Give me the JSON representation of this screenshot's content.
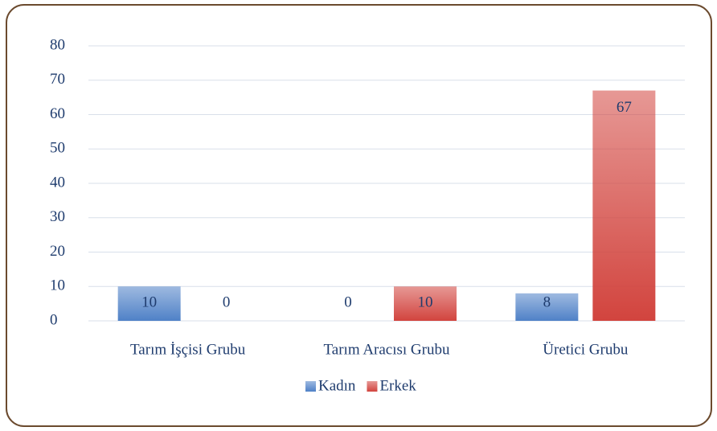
{
  "chart_data": {
    "type": "bar",
    "categories": [
      "Tarım İşçisi Grubu",
      "Tarım Aracısı Grubu",
      "Üretici Grubu"
    ],
    "series": [
      {
        "name": "Kadın",
        "color": "#4f81c7",
        "values": [
          10,
          0,
          8
        ]
      },
      {
        "name": "Erkek",
        "color": "#d2443e",
        "values": [
          0,
          10,
          67
        ]
      }
    ],
    "ylim": [
      0,
      80
    ],
    "yticks": [
      0,
      10,
      20,
      30,
      40,
      50,
      60,
      70,
      80
    ],
    "grid": true,
    "legend": "bottom"
  }
}
